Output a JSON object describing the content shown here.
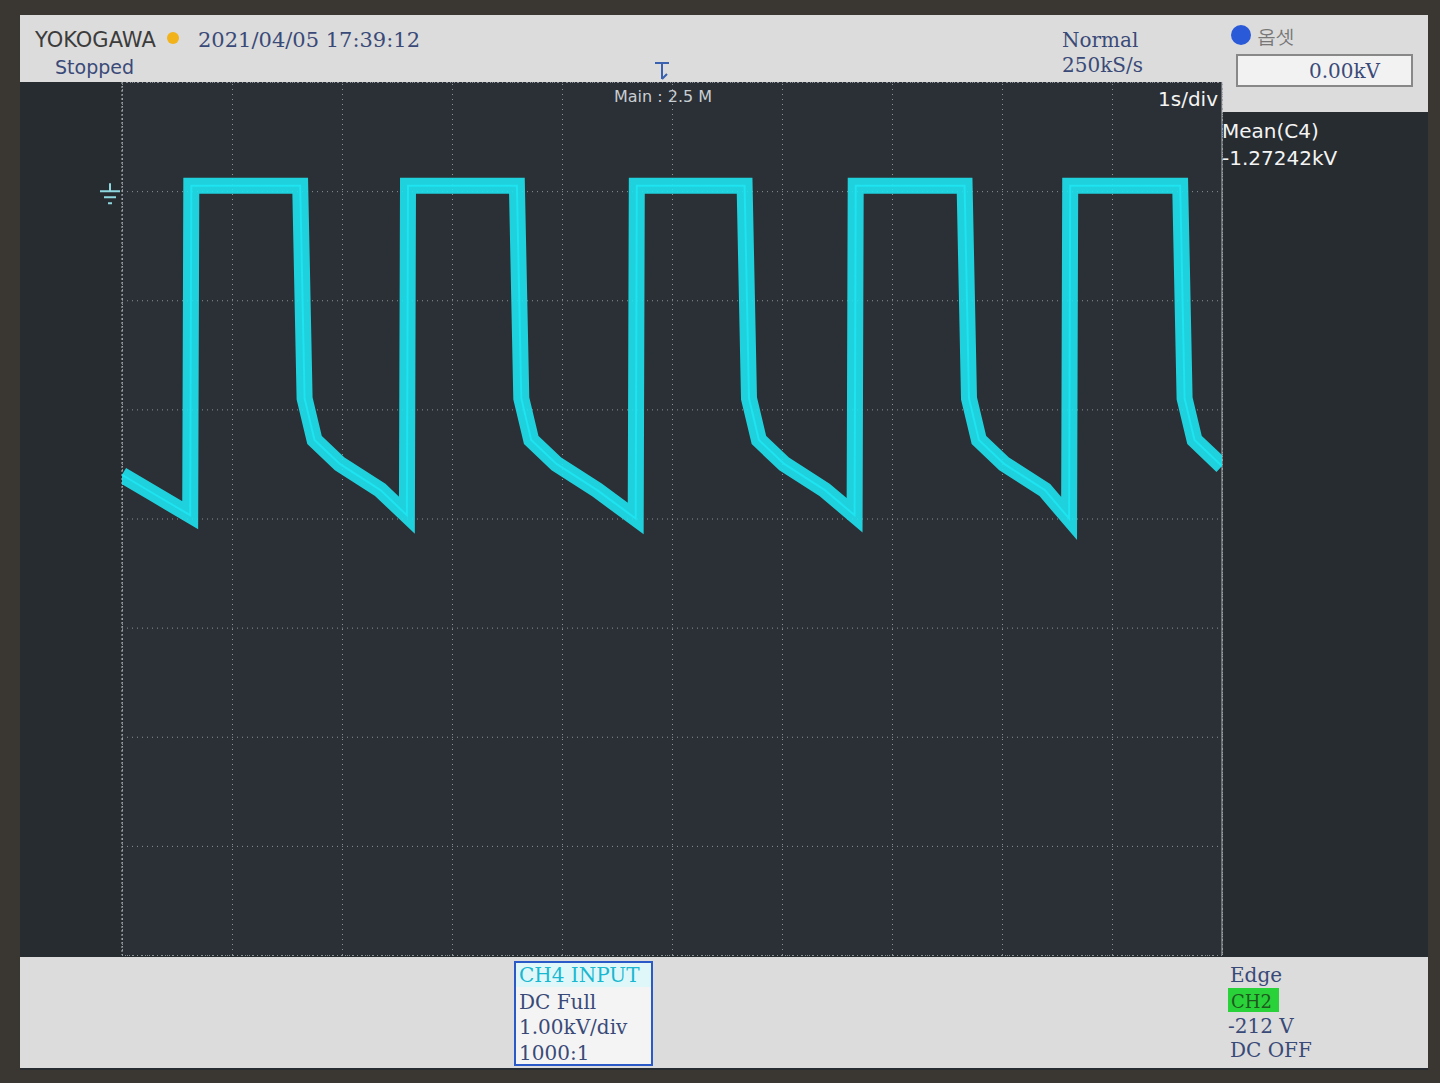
{
  "chart_data": {
    "type": "line",
    "annotations": [
      "YOKOGAWA",
      "2021/04/05 17:39:12",
      "Stopped",
      "Normal",
      "250kS/s",
      "옵셋",
      "0.00kV",
      "Main : 2.5 M",
      "1s/div",
      "Mean(C4)",
      "-1.27242kV",
      "CH4 INPUT",
      "DC Full",
      "1.00kV/div",
      "1000:1",
      "Edge",
      "CH2",
      "-212 V",
      "DC OFF"
    ],
    "x": [
      0,
      0.3,
      0.62,
      0.63,
      1.0,
      1.62,
      1.66,
      1.75,
      1.98,
      2.35,
      2.59,
      2.6,
      3.0,
      3.59,
      3.63,
      3.72,
      3.95,
      4.32,
      4.67,
      4.68,
      5.1,
      5.66,
      5.7,
      5.79,
      6.02,
      6.39,
      6.66,
      6.67,
      7.1,
      7.66,
      7.7,
      7.79,
      8.02,
      8.39,
      8.61,
      8.62,
      9.0,
      9.62,
      9.66,
      9.75,
      10
    ],
    "series": [
      {
        "color": "#1ee3f0",
        "values": [
          -2.6,
          -2.78,
          -2.97,
          0.05,
          0.05,
          0.05,
          -1.9,
          -2.28,
          -2.5,
          -2.74,
          -2.97,
          0.05,
          0.05,
          0.05,
          -1.9,
          -2.28,
          -2.5,
          -2.74,
          -3.0,
          0.05,
          0.05,
          0.05,
          -1.9,
          -2.28,
          -2.5,
          -2.74,
          -2.97,
          0.05,
          0.05,
          0.05,
          -1.9,
          -2.28,
          -2.5,
          -2.74,
          -3.0,
          0.05,
          0.05,
          0.05,
          -1.9,
          -2.28,
          -2.52
        ]
      }
    ],
    "xlim": [
      0,
      10
    ],
    "xticks": [
      0,
      1,
      2,
      3,
      4,
      5,
      6,
      7,
      8,
      9,
      10
    ],
    "ylim": [
      -7,
      1
    ],
    "yticks": [
      -7,
      -6,
      -5,
      -4,
      -3,
      -2,
      -1,
      0,
      1
    ],
    "grid": true,
    "tick_labels": false
  }
}
